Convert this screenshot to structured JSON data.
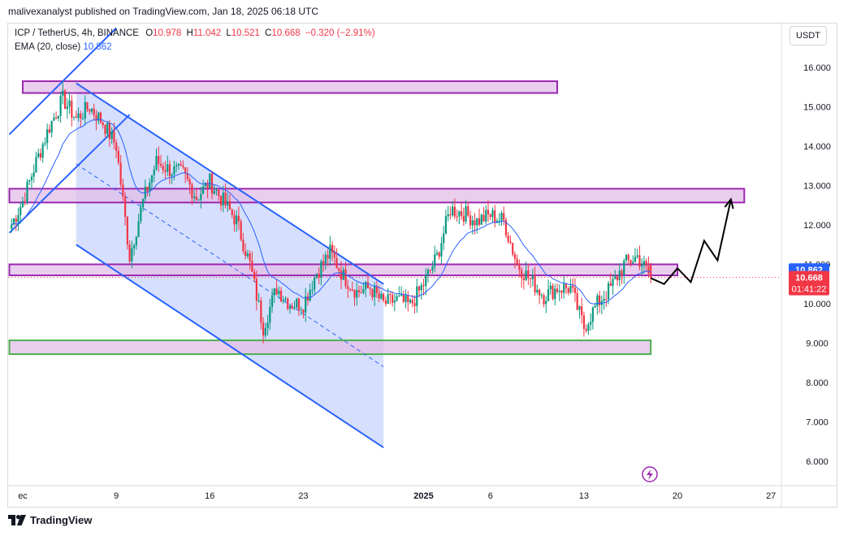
{
  "header": {
    "published": "malivexanalyst published on TradingView.com, Jan 18, 2025 06:18 UTC"
  },
  "legend": {
    "symbol": "ICP / TetherUS, 4h, BINANCE",
    "o_label": "O",
    "o_value": "10.978",
    "h_label": "H",
    "h_value": "11.042",
    "l_label": "L",
    "l_value": "10.521",
    "c_label": "C",
    "c_value": "10.668",
    "change": "−0.320 (−2.91%)",
    "ema_label": "EMA (20, close)",
    "ema_value": "10.862"
  },
  "currency_button": "USDT",
  "price_tags": {
    "ema": "10.862",
    "price": "10.668",
    "countdown": "01:41:22"
  },
  "footer": {
    "brand": "TradingView"
  },
  "colors": {
    "up": "#089981",
    "down": "#f23645",
    "ema": "#2962ff",
    "zone_fill": "#e1bee7",
    "zone_border": "#9c27b0",
    "support_border": "#4caf50",
    "channel": "#2962ff",
    "channel_fill": "#bbc9fb"
  },
  "chart_data": {
    "type": "candlestick",
    "symbol": "ICP / TetherUS",
    "interval": "4h",
    "exchange": "BINANCE",
    "y_ticks": [
      16.0,
      15.0,
      14.0,
      13.0,
      12.0,
      11.0,
      10.0,
      9.0,
      8.0,
      7.0,
      6.0
    ],
    "y_tick_labels": [
      "16.000",
      "15.000",
      "14.000",
      "13.000",
      "12.000",
      "11.000",
      "10.000",
      "9.000",
      "8.000",
      "7.000",
      "6.000"
    ],
    "ylim": [
      5.4,
      16.7
    ],
    "x_ticks": [
      "Dec 2",
      "Dec 9",
      "Dec 16",
      "Dec 23",
      "Jan 1",
      "Jan 6",
      "Jan 13",
      "Jan 20",
      "Jan 27"
    ],
    "x_tick_labels": [
      "ec",
      "9",
      "16",
      "23",
      "2025",
      "6",
      "13",
      "20",
      "27"
    ],
    "ema_period": 20,
    "last": {
      "open": 10.978,
      "high": 11.042,
      "low": 10.521,
      "close": 10.668,
      "change": -0.32,
      "change_pct": -2.91,
      "ema": 10.862
    },
    "anchors": [
      {
        "date": "Dec 1",
        "price": 11.9
      },
      {
        "date": "Dec 2",
        "price": 12.6
      },
      {
        "date": "Dec 3",
        "price": 13.6
      },
      {
        "date": "Dec 4",
        "price": 14.5
      },
      {
        "date": "Dec 5",
        "price": 15.2
      },
      {
        "date": "Dec 6",
        "price": 14.7
      },
      {
        "date": "Dec 7",
        "price": 15.0
      },
      {
        "date": "Dec 8",
        "price": 14.6
      },
      {
        "date": "Dec 9",
        "price": 14.0
      },
      {
        "date": "Dec 10",
        "price": 11.2
      },
      {
        "date": "Dec 11",
        "price": 12.6
      },
      {
        "date": "Dec 12",
        "price": 13.6
      },
      {
        "date": "Dec 13",
        "price": 13.4
      },
      {
        "date": "Dec 14",
        "price": 13.3
      },
      {
        "date": "Dec 15",
        "price": 12.7
      },
      {
        "date": "Dec 16",
        "price": 13.1
      },
      {
        "date": "Dec 17",
        "price": 12.6
      },
      {
        "date": "Dec 18",
        "price": 12.1
      },
      {
        "date": "Dec 19",
        "price": 11.0
      },
      {
        "date": "Dec 20",
        "price": 9.4
      },
      {
        "date": "Dec 21",
        "price": 10.4
      },
      {
        "date": "Dec 22",
        "price": 10.0
      },
      {
        "date": "Dec 23",
        "price": 10.0
      },
      {
        "date": "Dec 24",
        "price": 10.8
      },
      {
        "date": "Dec 25",
        "price": 11.3
      },
      {
        "date": "Dec 26",
        "price": 10.7
      },
      {
        "date": "Dec 27",
        "price": 10.3
      },
      {
        "date": "Dec 28",
        "price": 10.4
      },
      {
        "date": "Dec 29",
        "price": 10.0
      },
      {
        "date": "Dec 30",
        "price": 10.1
      },
      {
        "date": "Dec 31",
        "price": 9.95
      },
      {
        "date": "Jan 1",
        "price": 10.5
      },
      {
        "date": "Jan 2",
        "price": 11.2
      },
      {
        "date": "Jan 3",
        "price": 12.4
      },
      {
        "date": "Jan 4",
        "price": 12.3
      },
      {
        "date": "Jan 5",
        "price": 12.1
      },
      {
        "date": "Jan 6",
        "price": 12.25
      },
      {
        "date": "Jan 7",
        "price": 12.1
      },
      {
        "date": "Jan 8",
        "price": 11.0
      },
      {
        "date": "Jan 9",
        "price": 10.6
      },
      {
        "date": "Jan 10",
        "price": 10.2
      },
      {
        "date": "Jan 11",
        "price": 10.4
      },
      {
        "date": "Jan 12",
        "price": 10.4
      },
      {
        "date": "Jan 13",
        "price": 9.4
      },
      {
        "date": "Jan 14",
        "price": 10.0
      },
      {
        "date": "Jan 15",
        "price": 10.4
      },
      {
        "date": "Jan 16",
        "price": 11.0
      },
      {
        "date": "Jan 17",
        "price": 11.2
      },
      {
        "date": "Jan 18",
        "price": 10.67
      }
    ],
    "zones": [
      {
        "kind": "resistance",
        "from": "Dec 2",
        "to": "Jan 11",
        "low": 15.35,
        "high": 15.65
      },
      {
        "kind": "resistance",
        "from": "Dec 1",
        "to": "Jan 25",
        "low": 12.57,
        "high": 12.92
      },
      {
        "kind": "pivot",
        "from": "Dec 1",
        "to": "Jan 20",
        "low": 10.72,
        "high": 11.0
      },
      {
        "kind": "support",
        "from": "Dec 1",
        "to": "Jan 18",
        "low": 8.72,
        "high": 9.07
      }
    ],
    "channels": [
      {
        "kind": "rising",
        "lower": [
          {
            "date": "Dec 1",
            "price": 11.8
          },
          {
            "date": "Dec 10",
            "price": 14.8
          }
        ],
        "upper": [
          {
            "date": "Dec 1",
            "price": 14.3
          },
          {
            "date": "Dec 9",
            "price": 17.0
          }
        ]
      },
      {
        "kind": "falling",
        "upper": [
          {
            "date": "Dec 6",
            "price": 15.6
          },
          {
            "date": "Dec 29",
            "price": 10.5
          }
        ],
        "lower": [
          {
            "date": "Dec 6",
            "price": 11.5
          },
          {
            "date": "Dec 29",
            "price": 6.35
          }
        ],
        "mid": [
          {
            "date": "Dec 6",
            "price": 13.55
          },
          {
            "date": "Dec 29",
            "price": 8.4
          }
        ]
      }
    ],
    "projection": [
      {
        "date": "Jan 18",
        "price": 10.65
      },
      {
        "date": "Jan 19",
        "price": 10.5
      },
      {
        "date": "Jan 20",
        "price": 10.9
      },
      {
        "date": "Jan 21",
        "price": 10.55
      },
      {
        "date": "Jan 22",
        "price": 11.6
      },
      {
        "date": "Jan 23",
        "price": 11.1
      },
      {
        "date": "Jan 24",
        "price": 12.65
      }
    ]
  }
}
